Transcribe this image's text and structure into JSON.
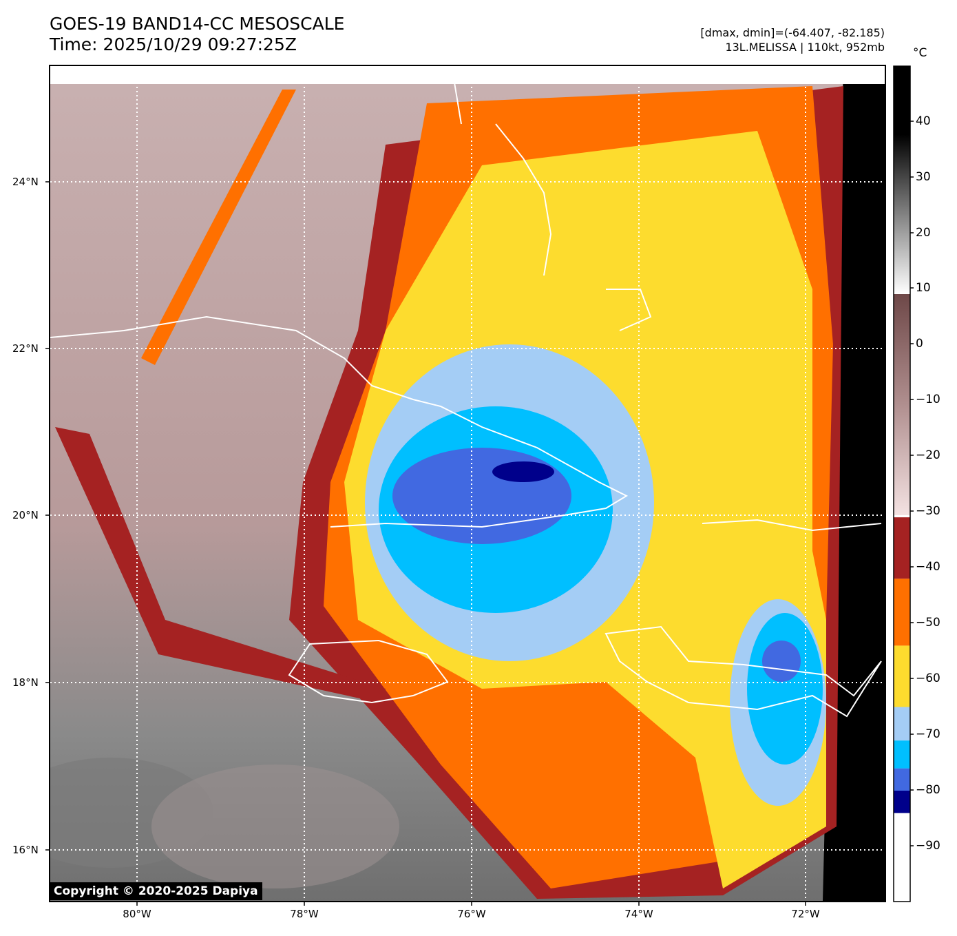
{
  "title": {
    "line1": "GOES-19 BAND14-CC MESOSCALE",
    "line2": "Time: 2025/10/29 09:27:25Z"
  },
  "info": {
    "line1": "[dmax, dmin]=(-64.407, -82.185)",
    "line2": "13L.MELISSA | 110kt, 952mb"
  },
  "colorbar": {
    "unit": "°C",
    "tick_labels": [
      "40",
      "30",
      "20",
      "10",
      "0",
      "−10",
      "−20",
      "−30",
      "−40",
      "−50",
      "−60",
      "−70",
      "−80",
      "−90"
    ],
    "bands": [
      {
        "from": -100,
        "to": -84,
        "color": "#ffffff"
      },
      {
        "from": -84,
        "to": -80,
        "color": "#00008b"
      },
      {
        "from": -80,
        "to": -76,
        "color": "#4169e1"
      },
      {
        "from": -76,
        "to": -71,
        "color": "#00bfff"
      },
      {
        "from": -71,
        "to": -65,
        "color": "#a4cdf5"
      },
      {
        "from": -65,
        "to": -54,
        "color": "#fddc2e"
      },
      {
        "from": -54,
        "to": -42,
        "color": "#ff7000"
      },
      {
        "from": -42,
        "to": -31,
        "color": "#a52222"
      }
    ]
  },
  "map": {
    "lat_labels": [
      "24°N",
      "22°N",
      "20°N",
      "18°N",
      "16°N"
    ],
    "lon_labels": [
      "80°W",
      "78°W",
      "76°W",
      "74°W",
      "72°W"
    ],
    "storm_name": "13L.MELISSA"
  },
  "copyright": "Copyright © 2020-2025 Dapiya"
}
